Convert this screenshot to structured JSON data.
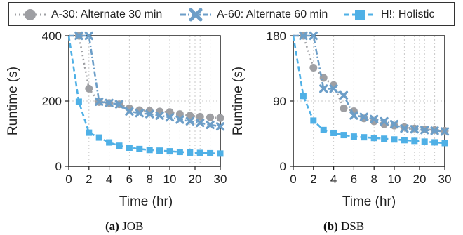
{
  "legend": {
    "items": [
      {
        "label": "A-30: Alternate 30 min",
        "color": "#9e9fa3",
        "marker": "circle",
        "dash": "dotted"
      },
      {
        "label": "A-60: Alternate 60 min",
        "color": "#6c9ec8",
        "marker": "x",
        "dash": "dashdot"
      },
      {
        "label": "H!: Holistic",
        "color": "#4fb0e6",
        "marker": "square",
        "dash": "dashed"
      }
    ]
  },
  "captions": [
    {
      "tag": "(a)",
      "text": "JOB"
    },
    {
      "tag": "(b)",
      "text": "DSB"
    }
  ],
  "chart_data": [
    {
      "type": "line",
      "title": "(a) JOB",
      "xlabel": "Time (hr)",
      "ylabel": "Runtime (s)",
      "xlim": [
        0,
        30
      ],
      "ylim": [
        0,
        400
      ],
      "xticks": [
        0,
        2,
        4,
        6,
        8,
        10,
        20,
        30
      ],
      "yticks": [
        0,
        200,
        400
      ],
      "grid": true,
      "series": [
        {
          "name": "A-30: Alternate 30 min",
          "x": [
            0,
            1,
            2,
            3,
            4,
            5,
            6,
            7,
            8,
            9,
            10,
            14,
            18,
            22,
            26,
            30
          ],
          "y": [
            400,
            400,
            238,
            197,
            194,
            190,
            178,
            172,
            170,
            168,
            166,
            160,
            155,
            152,
            150,
            148
          ]
        },
        {
          "name": "A-60: Alternate 60 min",
          "x": [
            0,
            1,
            2,
            3,
            4,
            5,
            6,
            7,
            8,
            9,
            10,
            14,
            18,
            22,
            26,
            30
          ],
          "y": [
            400,
            400,
            400,
            198,
            194,
            190,
            168,
            163,
            160,
            155,
            150,
            143,
            138,
            133,
            127,
            122
          ]
        },
        {
          "name": "H!: Holistic",
          "x": [
            0,
            1,
            2,
            3,
            4,
            5,
            6,
            7,
            8,
            9,
            10,
            14,
            18,
            22,
            26,
            30
          ],
          "y": [
            400,
            198,
            103,
            88,
            73,
            63,
            57,
            53,
            50,
            48,
            46,
            44,
            42,
            41,
            40,
            39
          ]
        }
      ]
    },
    {
      "type": "line",
      "title": "(b) DSB",
      "xlabel": "Time (hr)",
      "ylabel": "Runtime (s)",
      "xlim": [
        0,
        30
      ],
      "ylim": [
        0,
        180
      ],
      "xticks": [
        0,
        2,
        4,
        6,
        8,
        10,
        20,
        30
      ],
      "yticks": [
        0,
        90,
        180
      ],
      "grid": true,
      "series": [
        {
          "name": "A-30: Alternate 30 min",
          "x": [
            0,
            1,
            2,
            3,
            4,
            5,
            6,
            7,
            8,
            9,
            10,
            14,
            18,
            22,
            26,
            30
          ],
          "y": [
            180,
            180,
            136,
            122,
            112,
            80,
            76,
            66,
            62,
            58,
            56,
            54,
            52,
            51,
            50,
            49
          ]
        },
        {
          "name": "A-60: Alternate 60 min",
          "x": [
            0,
            1,
            2,
            3,
            4,
            5,
            6,
            7,
            8,
            9,
            10,
            14,
            18,
            22,
            26,
            30
          ],
          "y": [
            180,
            180,
            180,
            107,
            107,
            98,
            70,
            68,
            65,
            62,
            58,
            52,
            51,
            50,
            49,
            48
          ]
        },
        {
          "name": "H!: Holistic",
          "x": [
            0,
            1,
            2,
            3,
            4,
            5,
            6,
            7,
            8,
            9,
            10,
            14,
            18,
            22,
            26,
            30
          ],
          "y": [
            180,
            97,
            63,
            50,
            46,
            43,
            41,
            40,
            39,
            38,
            37,
            36,
            35,
            34,
            33,
            32
          ]
        }
      ]
    }
  ]
}
